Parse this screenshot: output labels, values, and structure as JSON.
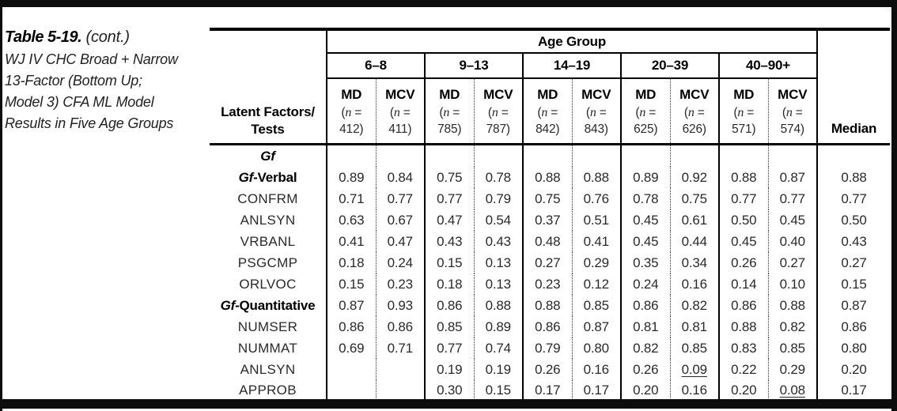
{
  "colors": {
    "ink": "#1a1a1a",
    "line": "#000000",
    "background": "#ffffff"
  },
  "title": {
    "label": "Table 5-19.",
    "cont": "(cont.)",
    "caption_lines": [
      "WJ IV CHC Broad + Narrow",
      "13-Factor (Bottom Up;",
      "Model 3) CFA ML Model",
      "Results in Five Age Groups"
    ]
  },
  "table": {
    "header": {
      "row_label_line1": "Latent Factors/",
      "row_label_line2": "Tests",
      "age_group_label": "Age Group",
      "median_label": "Median",
      "md_label": "MD",
      "mcv_label": "MCV",
      "n_open": "(",
      "n_letter": "n",
      "n_equals": " =",
      "n_close": ")",
      "groups": [
        {
          "range": "6–8",
          "md_n": "412",
          "mcv_n": "411"
        },
        {
          "range": "9–13",
          "md_n": "785",
          "mcv_n": "787"
        },
        {
          "range": "14–19",
          "md_n": "842",
          "mcv_n": "843"
        },
        {
          "range": "20–39",
          "md_n": "625",
          "mcv_n": "626"
        },
        {
          "range": "40–90+",
          "md_n": "571",
          "mcv_n": "574"
        }
      ]
    },
    "rows": [
      {
        "type": "section",
        "label": "Gf",
        "values": [
          "",
          "",
          "",
          "",
          "",
          "",
          "",
          "",
          "",
          ""
        ],
        "median": ""
      },
      {
        "type": "factor",
        "label_italic": "Gf",
        "label_rest": "-Verbal",
        "values": [
          "0.89",
          "0.84",
          "0.75",
          "0.78",
          "0.88",
          "0.88",
          "0.89",
          "0.92",
          "0.88",
          "0.87"
        ],
        "median": "0.88"
      },
      {
        "type": "test",
        "label": "CONFRM",
        "values": [
          "0.71",
          "0.77",
          "0.77",
          "0.79",
          "0.75",
          "0.76",
          "0.78",
          "0.75",
          "0.77",
          "0.77"
        ],
        "median": "0.77"
      },
      {
        "type": "test",
        "label": "ANLSYN",
        "values": [
          "0.63",
          "0.67",
          "0.47",
          "0.54",
          "0.37",
          "0.51",
          "0.45",
          "0.61",
          "0.50",
          "0.45"
        ],
        "median": "0.50"
      },
      {
        "type": "test",
        "label": "VRBANL",
        "values": [
          "0.41",
          "0.47",
          "0.43",
          "0.43",
          "0.48",
          "0.41",
          "0.45",
          "0.44",
          "0.45",
          "0.40"
        ],
        "median": "0.43"
      },
      {
        "type": "test",
        "label": "PSGCMP",
        "values": [
          "0.18",
          "0.24",
          "0.15",
          "0.13",
          "0.27",
          "0.29",
          "0.35",
          "0.34",
          "0.26",
          "0.27"
        ],
        "median": "0.27"
      },
      {
        "type": "test",
        "label": "ORLVOC",
        "values": [
          "0.15",
          "0.23",
          "0.18",
          "0.13",
          "0.23",
          "0.12",
          "0.24",
          "0.16",
          "0.14",
          "0.10"
        ],
        "median": "0.15"
      },
      {
        "type": "factor",
        "label_italic": "Gf",
        "label_rest": "-Quantitative",
        "values": [
          "0.87",
          "0.93",
          "0.86",
          "0.88",
          "0.88",
          "0.85",
          "0.86",
          "0.82",
          "0.86",
          "0.88"
        ],
        "median": "0.87"
      },
      {
        "type": "test",
        "label": "NUMSER",
        "values": [
          "0.86",
          "0.86",
          "0.85",
          "0.89",
          "0.86",
          "0.87",
          "0.81",
          "0.81",
          "0.88",
          "0.82"
        ],
        "median": "0.86"
      },
      {
        "type": "test",
        "label": "NUMMAT",
        "values": [
          "0.69",
          "0.71",
          "0.77",
          "0.74",
          "0.79",
          "0.80",
          "0.82",
          "0.85",
          "0.83",
          "0.85"
        ],
        "median": "0.80"
      },
      {
        "type": "test",
        "label": "ANLSYN",
        "values": [
          "",
          "",
          "0.19",
          "0.19",
          "0.26",
          "0.16",
          "0.26",
          "0.09",
          "0.22",
          "0.29"
        ],
        "underline": [
          7
        ],
        "median": "0.20"
      },
      {
        "type": "test",
        "label": "APPROB",
        "values": [
          "",
          "",
          "0.30",
          "0.15",
          "0.17",
          "0.17",
          "0.20",
          "0.16",
          "0.20",
          "0.08"
        ],
        "underline": [
          9
        ],
        "median": "0.17"
      }
    ]
  }
}
